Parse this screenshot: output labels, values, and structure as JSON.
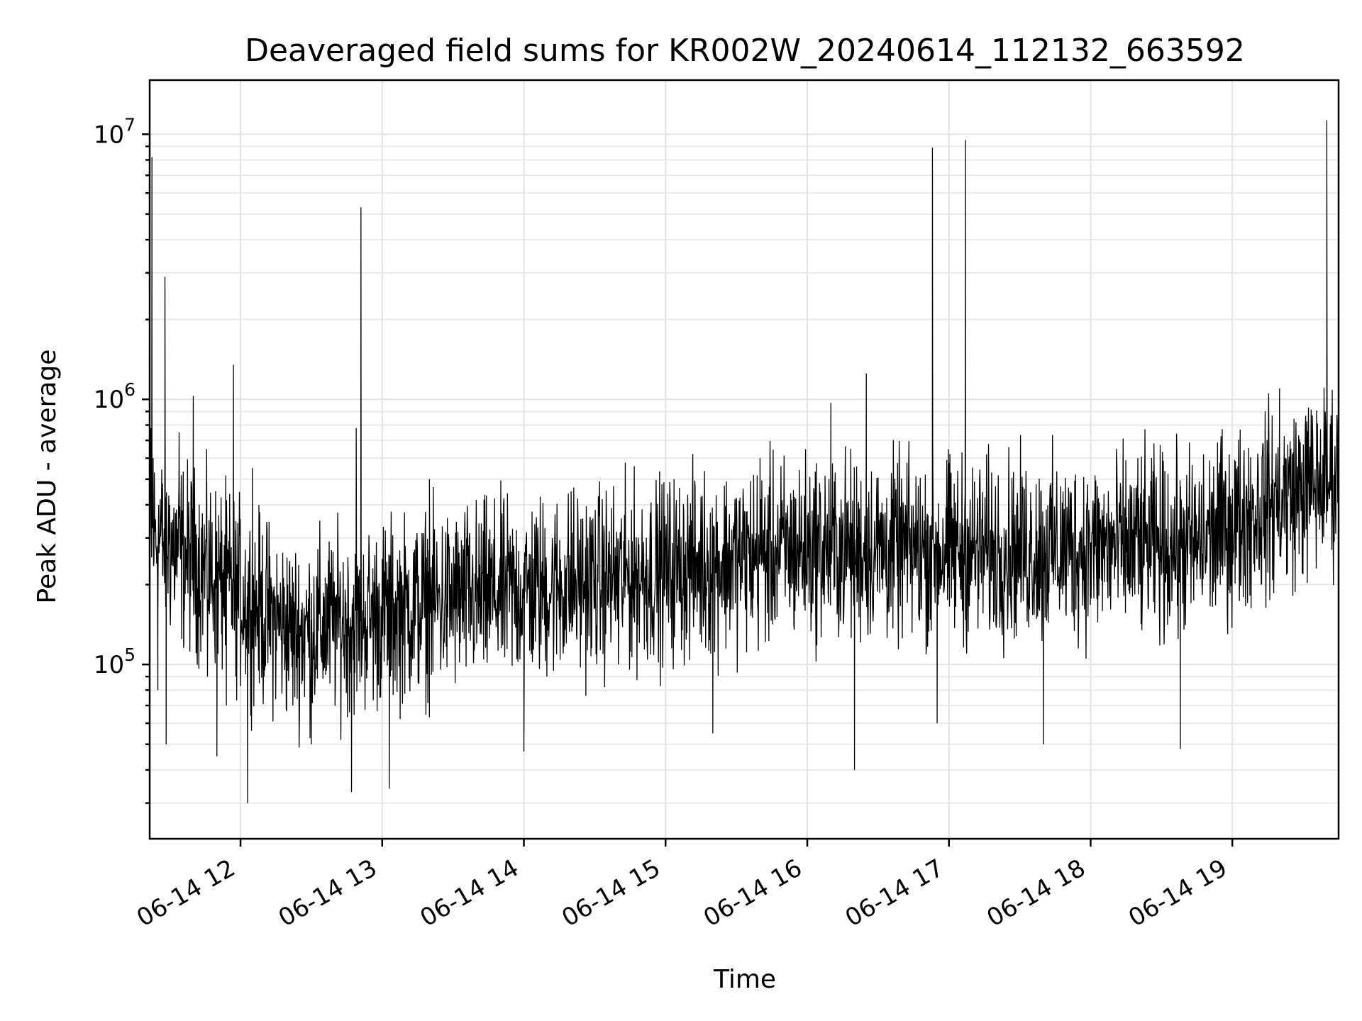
{
  "chart_data": {
    "type": "line",
    "title": "Deaveraged field sums for KR002W_20240614_112132_663592",
    "xlabel": "Time",
    "ylabel": "Peak ADU - average",
    "yscale": "log",
    "xlim": [
      "2024-06-14T11:21:32",
      "2024-06-14T19:45:00"
    ],
    "ylim": [
      22000,
      16000000
    ],
    "grid": true,
    "line_color": "#000000",
    "x_ticks": [
      {
        "value": "2024-06-14T12:00:00",
        "label": "06-14 12"
      },
      {
        "value": "2024-06-14T13:00:00",
        "label": "06-14 13"
      },
      {
        "value": "2024-06-14T14:00:00",
        "label": "06-14 14"
      },
      {
        "value": "2024-06-14T15:00:00",
        "label": "06-14 15"
      },
      {
        "value": "2024-06-14T16:00:00",
        "label": "06-14 16"
      },
      {
        "value": "2024-06-14T17:00:00",
        "label": "06-14 17"
      },
      {
        "value": "2024-06-14T18:00:00",
        "label": "06-14 18"
      },
      {
        "value": "2024-06-14T19:00:00",
        "label": "06-14 19"
      }
    ],
    "y_ticks": [
      {
        "value": 100000,
        "base": "10",
        "exp": "5"
      },
      {
        "value": 1000000,
        "base": "10",
        "exp": "6"
      },
      {
        "value": 10000000,
        "base": "10",
        "exp": "7"
      }
    ],
    "series": [
      {
        "points": [
          [
            "2024-06-14T11:22:00",
            780000
          ],
          [
            "2024-06-14T11:22:30",
            8200000
          ],
          [
            "2024-06-14T11:23:00",
            600000
          ],
          [
            "2024-06-14T11:24:00",
            350000
          ],
          [
            "2024-06-14T11:25:00",
            80000
          ],
          [
            "2024-06-14T11:26:00",
            420000
          ],
          [
            "2024-06-14T11:27:00",
            220000
          ],
          [
            "2024-06-14T11:28:00",
            2900000
          ],
          [
            "2024-06-14T11:28:30",
            50000
          ],
          [
            "2024-06-14T11:30:00",
            400000
          ],
          [
            "2024-06-14T11:32:00",
            180000
          ],
          [
            "2024-06-14T11:34:00",
            750000
          ],
          [
            "2024-06-14T11:36:00",
            120000
          ],
          [
            "2024-06-14T11:38:00",
            300000
          ],
          [
            "2024-06-14T11:40:00",
            1030000
          ],
          [
            "2024-06-14T11:42:00",
            150000
          ],
          [
            "2024-06-14T11:44:00",
            250000
          ],
          [
            "2024-06-14T11:46:00",
            90000
          ],
          [
            "2024-06-14T11:48:00",
            200000
          ],
          [
            "2024-06-14T11:50:00",
            45000
          ],
          [
            "2024-06-14T11:52:00",
            130000
          ],
          [
            "2024-06-14T11:54:00",
            70000
          ],
          [
            "2024-06-14T11:57:00",
            1350000
          ],
          [
            "2024-06-14T11:58:00",
            90000
          ],
          [
            "2024-06-14T12:03:00",
            30000
          ],
          [
            "2024-06-14T12:05:00",
            550000
          ],
          [
            "2024-06-14T12:10:00",
            90000
          ],
          [
            "2024-06-14T12:20:00",
            200000
          ],
          [
            "2024-06-14T12:30:00",
            50000
          ],
          [
            "2024-06-14T12:40:00",
            180000
          ],
          [
            "2024-06-14T12:47:00",
            33000
          ],
          [
            "2024-06-14T12:49:00",
            780000
          ],
          [
            "2024-06-14T12:51:00",
            5300000
          ],
          [
            "2024-06-14T12:52:00",
            130000
          ],
          [
            "2024-06-14T13:00:00",
            250000
          ],
          [
            "2024-06-14T13:03:00",
            34000
          ],
          [
            "2024-06-14T13:20:00",
            500000
          ],
          [
            "2024-06-14T13:40:00",
            120000
          ],
          [
            "2024-06-14T14:00:00",
            47000
          ],
          [
            "2024-06-14T14:20:00",
            450000
          ],
          [
            "2024-06-14T14:40:00",
            100000
          ],
          [
            "2024-06-14T15:00:00",
            300000
          ],
          [
            "2024-06-14T15:20:00",
            55000
          ],
          [
            "2024-06-14T15:40:00",
            600000
          ],
          [
            "2024-06-14T16:00:00",
            250000
          ],
          [
            "2024-06-14T16:10:00",
            970000
          ],
          [
            "2024-06-14T16:20:00",
            40000
          ],
          [
            "2024-06-14T16:25:00",
            1250000
          ],
          [
            "2024-06-14T16:50:00",
            300000
          ],
          [
            "2024-06-14T16:53:00",
            8900000
          ],
          [
            "2024-06-14T16:55:00",
            60000
          ],
          [
            "2024-06-14T17:07:00",
            9500000
          ],
          [
            "2024-06-14T17:10:00",
            250000
          ],
          [
            "2024-06-14T17:40:00",
            50000
          ],
          [
            "2024-06-14T18:20:00",
            600000
          ],
          [
            "2024-06-14T18:38:00",
            48000
          ],
          [
            "2024-06-14T19:00:00",
            350000
          ],
          [
            "2024-06-14T19:20:00",
            1100000
          ],
          [
            "2024-06-14T19:40:00",
            11300000
          ],
          [
            "2024-06-14T19:45:00",
            700000
          ]
        ]
      }
    ]
  }
}
